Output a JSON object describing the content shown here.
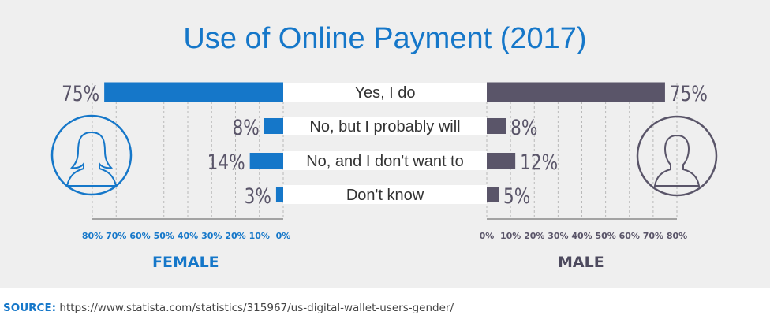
{
  "title": "Use of Online Payment (2017)",
  "female_label": "FEMALE",
  "male_label": "MALE",
  "source": {
    "label": "SOURCE:",
    "url": "https://www.statista.com/statistics/315967/us-digital-wallet-users-gender/"
  },
  "icons": {
    "female": "female-avatar-icon",
    "male": "male-avatar-icon"
  },
  "colors": {
    "female": "#1577c9",
    "male": "#5a5569",
    "title": "#1577c9",
    "panel": "#efefef"
  },
  "chart_data": {
    "type": "bar",
    "orientation": "horizontal",
    "layout": "butterfly",
    "categories": [
      "Yes, I do",
      "No, but I probably will",
      "No, and I don't want to",
      "Don't know"
    ],
    "series": [
      {
        "name": "FEMALE",
        "values": [
          75,
          8,
          14,
          3
        ],
        "labels": [
          "75%",
          "8%",
          "14%",
          "3%"
        ]
      },
      {
        "name": "MALE",
        "values": [
          75,
          8,
          12,
          5
        ],
        "labels": [
          "75%",
          "8%",
          "12%",
          "5%"
        ]
      }
    ],
    "xlim": [
      0,
      80
    ],
    "female_ticks": [
      "80%",
      "70%",
      "60%",
      "50%",
      "40%",
      "30%",
      "20%",
      "10%",
      "0%"
    ],
    "male_ticks": [
      "0%",
      "10%",
      "20%",
      "30%",
      "40%",
      "50%",
      "60%",
      "70%",
      "80%"
    ],
    "grid": true
  }
}
